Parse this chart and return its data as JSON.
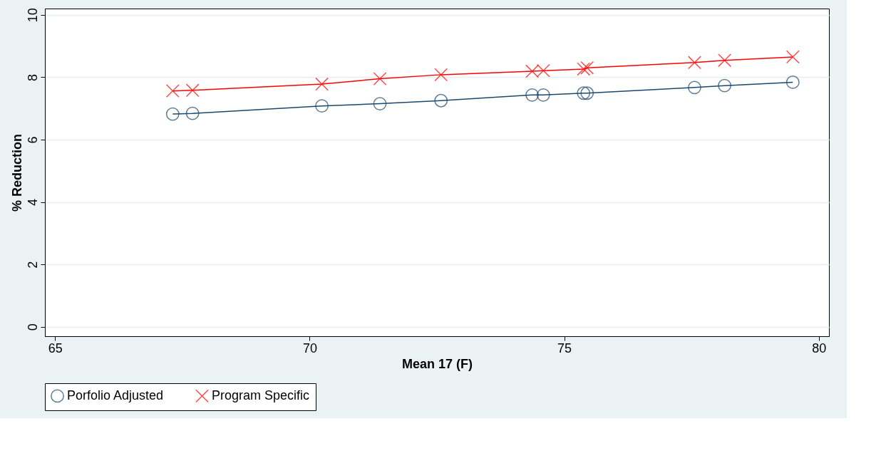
{
  "chart_data": {
    "type": "line",
    "xlabel": "Mean 17 (F)",
    "ylabel": "% Reduction",
    "xlim": [
      64.8,
      80.2
    ],
    "xticks": [
      65,
      70,
      75,
      80
    ],
    "ylim": [
      -0.3,
      10.2
    ],
    "yticks": [
      0,
      2,
      4,
      6,
      8,
      10
    ],
    "grid": "y",
    "legend": "bottom",
    "series": [
      {
        "name": "Porfolio Adjusted",
        "color": "#1a476f",
        "marker": "circle",
        "x": [
          67.31,
          67.7,
          70.24,
          71.38,
          72.58,
          74.37,
          74.59,
          75.38,
          75.45,
          77.56,
          78.15,
          79.49
        ],
        "values": [
          6.82,
          6.84,
          7.08,
          7.15,
          7.25,
          7.43,
          7.43,
          7.49,
          7.49,
          7.67,
          7.73,
          7.84
        ]
      },
      {
        "name": "Program Specific",
        "color": "#ff0000",
        "marker": "cross",
        "x": [
          67.31,
          67.7,
          70.24,
          71.38,
          72.58,
          74.37,
          74.59,
          75.38,
          75.45,
          77.56,
          78.15,
          79.49
        ],
        "values": [
          7.56,
          7.58,
          7.78,
          7.95,
          8.08,
          8.19,
          8.21,
          8.26,
          8.3,
          8.47,
          8.54,
          8.65
        ]
      }
    ]
  }
}
